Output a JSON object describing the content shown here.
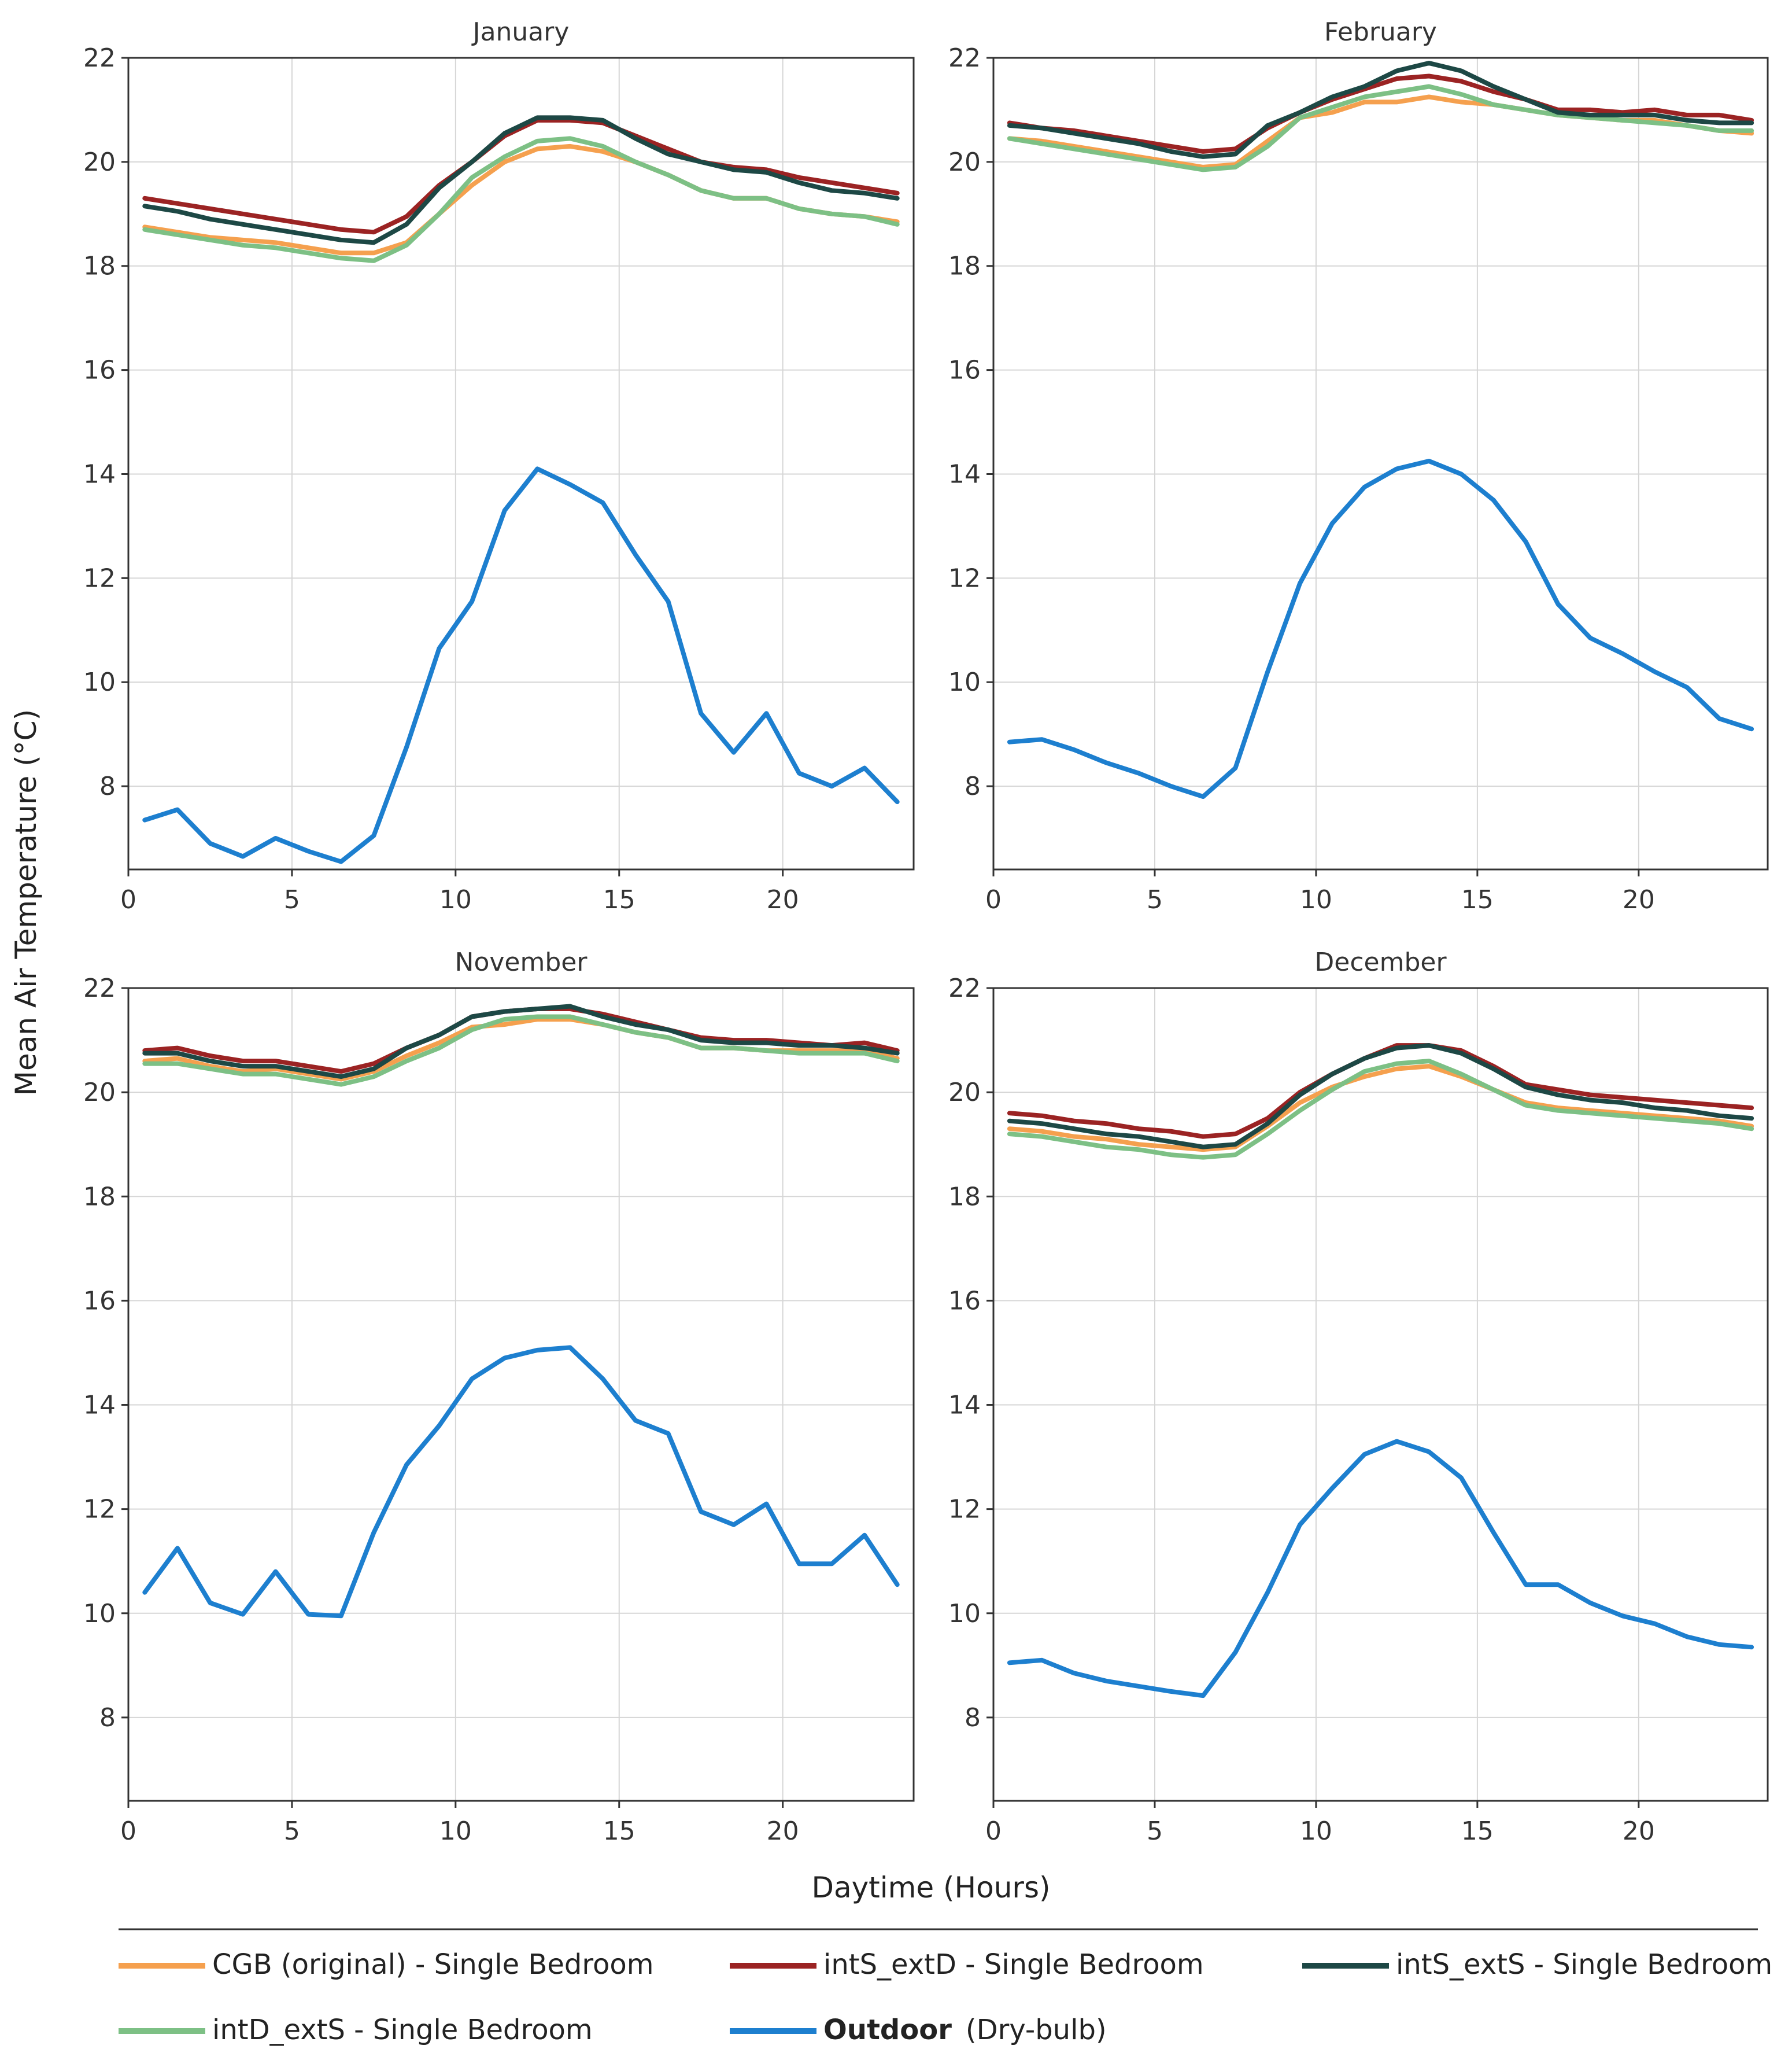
{
  "chart_data": {
    "type": "line",
    "ylabel": "Mean Air Temperature (°C)",
    "xlabel": "Daytime (Hours)",
    "xlim": [
      0,
      24
    ],
    "ylim": [
      6.4,
      22
    ],
    "x_ticks": [
      0,
      5,
      10,
      15,
      20
    ],
    "y_ticks": [
      8,
      10,
      12,
      14,
      16,
      18,
      20,
      22
    ],
    "grid": true,
    "hours": [
      0.5,
      1.5,
      2.5,
      3.5,
      4.5,
      5.5,
      6.5,
      7.5,
      8.5,
      9.5,
      10.5,
      11.5,
      12.5,
      13.5,
      14.5,
      15.5,
      16.5,
      17.5,
      18.5,
      19.5,
      20.5,
      21.5,
      22.5,
      23.5
    ],
    "legend": [
      {
        "key": "cgb",
        "label": "CGB (original) - Single Bedroom",
        "color": "#f5a04e",
        "bold": false
      },
      {
        "key": "ints_extd",
        "label": "intS_extD - Single Bedroom",
        "color": "#9b2323",
        "bold": false
      },
      {
        "key": "ints_exts",
        "label": "intS_extS - Single Bedroom",
        "color": "#1d4845",
        "bold": false
      },
      {
        "key": "intd_exts",
        "label": "intD_extS - Single Bedroom",
        "color": "#7dc085",
        "bold": false
      },
      {
        "key": "outdoor",
        "label": "Outdoor",
        "label_suffix": "(Dry-bulb)",
        "color": "#1d7fcf",
        "bold": true
      }
    ],
    "panels": [
      {
        "title": "January",
        "series": {
          "cgb": [
            18.75,
            18.65,
            18.55,
            18.5,
            18.45,
            18.35,
            18.25,
            18.25,
            18.45,
            19.0,
            19.55,
            20.0,
            20.25,
            20.3,
            20.2,
            20.0,
            19.75,
            19.45,
            19.3,
            19.3,
            19.1,
            19.0,
            18.95,
            18.85
          ],
          "ints_extd": [
            19.3,
            19.2,
            19.1,
            19.0,
            18.9,
            18.8,
            18.7,
            18.65,
            18.95,
            19.55,
            20.0,
            20.5,
            20.8,
            20.8,
            20.75,
            20.5,
            20.25,
            20.0,
            19.9,
            19.85,
            19.7,
            19.6,
            19.5,
            19.4
          ],
          "ints_exts": [
            19.15,
            19.05,
            18.9,
            18.8,
            18.7,
            18.6,
            18.5,
            18.45,
            18.8,
            19.5,
            20.0,
            20.55,
            20.85,
            20.85,
            20.8,
            20.45,
            20.15,
            20.0,
            19.85,
            19.8,
            19.6,
            19.45,
            19.4,
            19.3
          ],
          "intd_exts": [
            18.7,
            18.6,
            18.5,
            18.4,
            18.35,
            18.25,
            18.15,
            18.1,
            18.4,
            19.0,
            19.7,
            20.1,
            20.4,
            20.45,
            20.3,
            20.0,
            19.75,
            19.45,
            19.3,
            19.3,
            19.1,
            19.0,
            18.95,
            18.8
          ],
          "outdoor": [
            7.35,
            7.55,
            6.9,
            6.65,
            7.0,
            6.75,
            6.55,
            7.05,
            8.75,
            10.65,
            11.55,
            13.3,
            14.1,
            13.8,
            13.45,
            12.45,
            11.55,
            9.4,
            8.65,
            9.4,
            8.25,
            8.0,
            8.35,
            7.7
          ]
        }
      },
      {
        "title": "February",
        "series": {
          "cgb": [
            20.45,
            20.4,
            20.3,
            20.2,
            20.1,
            20.0,
            19.9,
            19.95,
            20.4,
            20.85,
            20.95,
            21.15,
            21.15,
            21.25,
            21.15,
            21.1,
            21.0,
            20.9,
            20.85,
            20.8,
            20.8,
            20.7,
            20.6,
            20.55
          ],
          "ints_extd": [
            20.75,
            20.65,
            20.6,
            20.5,
            20.4,
            20.3,
            20.2,
            20.25,
            20.65,
            20.95,
            21.2,
            21.4,
            21.6,
            21.65,
            21.55,
            21.35,
            21.2,
            21.0,
            21.0,
            20.95,
            21.0,
            20.9,
            20.9,
            20.8
          ],
          "ints_exts": [
            20.7,
            20.65,
            20.55,
            20.45,
            20.35,
            20.2,
            20.1,
            20.15,
            20.7,
            20.95,
            21.25,
            21.45,
            21.75,
            21.9,
            21.75,
            21.45,
            21.2,
            20.95,
            20.9,
            20.9,
            20.9,
            20.8,
            20.75,
            20.75
          ],
          "intd_exts": [
            20.45,
            20.35,
            20.25,
            20.15,
            20.05,
            19.95,
            19.85,
            19.9,
            20.3,
            20.85,
            21.05,
            21.25,
            21.35,
            21.45,
            21.3,
            21.1,
            21.0,
            20.9,
            20.85,
            20.8,
            20.75,
            20.7,
            20.6,
            20.6
          ],
          "outdoor": [
            8.85,
            8.9,
            8.7,
            8.45,
            8.25,
            8.0,
            7.8,
            8.35,
            10.2,
            11.9,
            13.05,
            13.75,
            14.1,
            14.25,
            14.0,
            13.5,
            12.7,
            11.5,
            10.85,
            10.55,
            10.2,
            9.9,
            9.3,
            9.1
          ]
        }
      },
      {
        "title": "November",
        "series": {
          "cgb": [
            20.6,
            20.65,
            20.5,
            20.4,
            20.45,
            20.35,
            20.25,
            20.4,
            20.7,
            20.95,
            21.25,
            21.3,
            21.4,
            21.4,
            21.3,
            21.15,
            21.05,
            20.85,
            20.85,
            20.8,
            20.8,
            20.8,
            20.8,
            20.65
          ],
          "ints_extd": [
            20.8,
            20.85,
            20.7,
            20.6,
            20.6,
            20.5,
            20.4,
            20.55,
            20.85,
            21.1,
            21.45,
            21.55,
            21.6,
            21.6,
            21.5,
            21.35,
            21.2,
            21.05,
            21.0,
            21.0,
            20.95,
            20.9,
            20.95,
            20.8
          ],
          "ints_exts": [
            20.75,
            20.75,
            20.6,
            20.5,
            20.5,
            20.4,
            20.3,
            20.45,
            20.85,
            21.1,
            21.45,
            21.55,
            21.6,
            21.65,
            21.45,
            21.3,
            21.2,
            21.0,
            20.95,
            20.95,
            20.9,
            20.9,
            20.85,
            20.75
          ],
          "intd_exts": [
            20.55,
            20.55,
            20.45,
            20.35,
            20.35,
            20.25,
            20.15,
            20.3,
            20.6,
            20.85,
            21.2,
            21.4,
            21.45,
            21.45,
            21.3,
            21.15,
            21.05,
            20.85,
            20.85,
            20.8,
            20.75,
            20.75,
            20.75,
            20.6
          ],
          "outdoor": [
            10.4,
            11.25,
            10.2,
            9.98,
            10.8,
            9.98,
            9.95,
            11.55,
            12.85,
            13.6,
            14.5,
            14.9,
            15.05,
            15.1,
            14.5,
            13.7,
            13.45,
            11.95,
            11.7,
            12.1,
            10.95,
            10.95,
            11.5,
            10.55
          ]
        }
      },
      {
        "title": "December",
        "series": {
          "cgb": [
            19.3,
            19.25,
            19.15,
            19.1,
            19.0,
            18.95,
            18.9,
            18.95,
            19.35,
            19.8,
            20.1,
            20.3,
            20.45,
            20.5,
            20.3,
            20.05,
            19.8,
            19.7,
            19.65,
            19.6,
            19.55,
            19.5,
            19.45,
            19.35
          ],
          "ints_extd": [
            19.6,
            19.55,
            19.45,
            19.4,
            19.3,
            19.25,
            19.15,
            19.2,
            19.5,
            20.0,
            20.35,
            20.65,
            20.9,
            20.9,
            20.8,
            20.5,
            20.15,
            20.05,
            19.95,
            19.9,
            19.85,
            19.8,
            19.75,
            19.7
          ],
          "ints_exts": [
            19.45,
            19.4,
            19.3,
            19.2,
            19.15,
            19.05,
            18.95,
            19.0,
            19.4,
            19.95,
            20.35,
            20.65,
            20.85,
            20.9,
            20.75,
            20.45,
            20.1,
            19.95,
            19.85,
            19.8,
            19.7,
            19.65,
            19.55,
            19.5
          ],
          "intd_exts": [
            19.2,
            19.15,
            19.05,
            18.95,
            18.9,
            18.8,
            18.75,
            18.8,
            19.2,
            19.65,
            20.05,
            20.4,
            20.55,
            20.6,
            20.35,
            20.05,
            19.75,
            19.65,
            19.6,
            19.55,
            19.5,
            19.45,
            19.4,
            19.3
          ],
          "outdoor": [
            9.05,
            9.1,
            8.85,
            8.7,
            8.6,
            8.5,
            8.42,
            9.25,
            10.4,
            11.7,
            12.4,
            13.05,
            13.3,
            13.1,
            12.6,
            11.55,
            10.55,
            10.55,
            10.2,
            9.95,
            9.8,
            9.55,
            9.4,
            9.35
          ]
        }
      }
    ]
  }
}
